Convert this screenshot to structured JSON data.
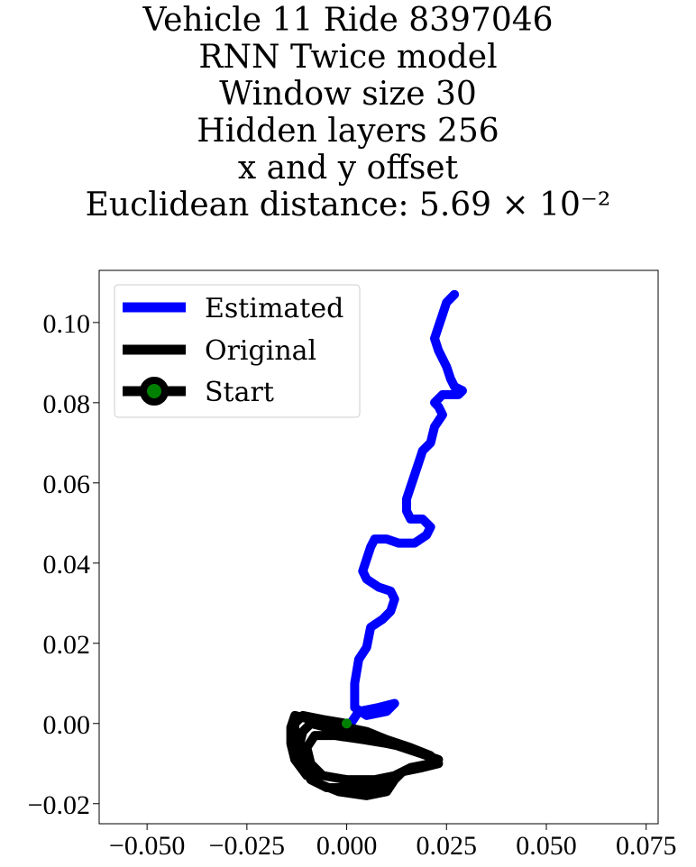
{
  "title_lines": [
    "Vehicle 11 Ride 8397046",
    "RNN Twice model",
    "Window size 30",
    "Hidden layers 256",
    "x and y offset",
    "Euclidean distance: 5.69 × 10⁻²"
  ],
  "chart_data": {
    "type": "line",
    "xlim": [
      -0.062,
      0.078
    ],
    "ylim": [
      -0.025,
      0.113
    ],
    "xticks": [
      -0.05,
      -0.025,
      0.0,
      0.025,
      0.05,
      0.075
    ],
    "xtick_labels": [
      "−0.050",
      "−0.025",
      "0.000",
      "0.025",
      "0.050",
      "0.075"
    ],
    "yticks": [
      -0.02,
      0.0,
      0.02,
      0.04,
      0.06,
      0.08,
      0.1
    ],
    "ytick_labels": [
      "−0.02",
      "0.00",
      "0.02",
      "0.04",
      "0.06",
      "0.08",
      "0.10"
    ],
    "grid": false,
    "legend_position": "top-left",
    "legend": [
      "Estimated",
      "Original",
      "Start"
    ],
    "colors": {
      "estimated": "#0000ff",
      "original": "#000000",
      "start_marker": "#008000"
    },
    "series": [
      {
        "name": "Estimated",
        "points": [
          [
            0.001,
            0.0
          ],
          [
            0.003,
            0.003
          ],
          [
            0.008,
            0.004
          ],
          [
            0.012,
            0.005
          ],
          [
            0.01,
            0.003
          ],
          [
            0.005,
            0.002
          ],
          [
            0.002,
            0.004
          ],
          [
            0.002,
            0.01
          ],
          [
            0.003,
            0.016
          ],
          [
            0.005,
            0.019
          ],
          [
            0.006,
            0.024
          ],
          [
            0.009,
            0.026
          ],
          [
            0.011,
            0.028
          ],
          [
            0.012,
            0.031
          ],
          [
            0.011,
            0.033
          ],
          [
            0.008,
            0.034
          ],
          [
            0.005,
            0.036
          ],
          [
            0.004,
            0.038
          ],
          [
            0.005,
            0.041
          ],
          [
            0.006,
            0.044
          ],
          [
            0.007,
            0.046
          ],
          [
            0.01,
            0.046
          ],
          [
            0.013,
            0.045
          ],
          [
            0.017,
            0.045
          ],
          [
            0.02,
            0.047
          ],
          [
            0.021,
            0.049
          ],
          [
            0.019,
            0.051
          ],
          [
            0.016,
            0.051
          ],
          [
            0.015,
            0.053
          ],
          [
            0.015,
            0.056
          ],
          [
            0.016,
            0.059
          ],
          [
            0.017,
            0.062
          ],
          [
            0.018,
            0.065
          ],
          [
            0.019,
            0.068
          ],
          [
            0.021,
            0.07
          ],
          [
            0.022,
            0.074
          ],
          [
            0.024,
            0.077
          ],
          [
            0.023,
            0.079
          ],
          [
            0.022,
            0.08
          ],
          [
            0.024,
            0.082
          ],
          [
            0.028,
            0.082
          ],
          [
            0.029,
            0.083
          ],
          [
            0.027,
            0.084
          ],
          [
            0.026,
            0.086
          ],
          [
            0.025,
            0.089
          ],
          [
            0.023,
            0.093
          ],
          [
            0.022,
            0.096
          ],
          [
            0.023,
            0.099
          ],
          [
            0.024,
            0.102
          ],
          [
            0.025,
            0.105
          ],
          [
            0.027,
            0.107
          ]
        ]
      },
      {
        "name": "Original",
        "points": [
          [
            0.0,
            0.0
          ],
          [
            -0.006,
            0.001
          ],
          [
            -0.011,
            0.002
          ],
          [
            -0.013,
            0.0
          ],
          [
            -0.013,
            -0.004
          ],
          [
            -0.012,
            -0.008
          ],
          [
            -0.01,
            -0.012
          ],
          [
            -0.007,
            -0.015
          ],
          [
            -0.002,
            -0.017
          ],
          [
            0.005,
            -0.018
          ],
          [
            0.01,
            -0.017
          ],
          [
            0.012,
            -0.014
          ],
          [
            0.014,
            -0.012
          ],
          [
            0.018,
            -0.011
          ],
          [
            0.022,
            -0.01
          ],
          [
            0.021,
            -0.008
          ],
          [
            0.016,
            -0.006
          ],
          [
            0.01,
            -0.004
          ],
          [
            0.005,
            -0.002
          ],
          [
            0.0,
            -0.001
          ],
          [
            -0.005,
            -0.001
          ],
          [
            -0.009,
            0.0
          ],
          [
            -0.011,
            -0.002
          ],
          [
            -0.012,
            -0.006
          ],
          [
            -0.011,
            -0.01
          ],
          [
            -0.009,
            -0.014
          ],
          [
            -0.005,
            -0.016
          ],
          [
            0.002,
            -0.016
          ],
          [
            0.008,
            -0.016
          ],
          [
            0.011,
            -0.014
          ],
          [
            0.014,
            -0.012
          ],
          [
            0.019,
            -0.011
          ],
          [
            0.023,
            -0.01
          ],
          [
            0.02,
            -0.008
          ],
          [
            0.015,
            -0.006
          ],
          [
            0.01,
            -0.005
          ],
          [
            0.004,
            -0.004
          ],
          [
            -0.003,
            -0.003
          ],
          [
            -0.008,
            -0.003
          ],
          [
            -0.01,
            -0.006
          ],
          [
            -0.009,
            -0.01
          ],
          [
            -0.006,
            -0.013
          ],
          [
            0.0,
            -0.014
          ],
          [
            0.007,
            -0.014
          ],
          [
            0.012,
            -0.013
          ],
          [
            0.016,
            -0.011
          ],
          [
            0.021,
            -0.01
          ],
          [
            0.023,
            -0.009
          ],
          [
            0.017,
            -0.007
          ],
          [
            0.011,
            -0.005
          ],
          [
            0.005,
            -0.003
          ],
          [
            -0.002,
            -0.002
          ],
          [
            -0.009,
            0.001
          ],
          [
            -0.013,
            0.002
          ],
          [
            -0.014,
            -0.001
          ],
          [
            -0.014,
            -0.005
          ],
          [
            -0.013,
            -0.009
          ],
          [
            -0.01,
            -0.013
          ]
        ]
      }
    ],
    "start_point": [
      0.0,
      0.0
    ]
  }
}
